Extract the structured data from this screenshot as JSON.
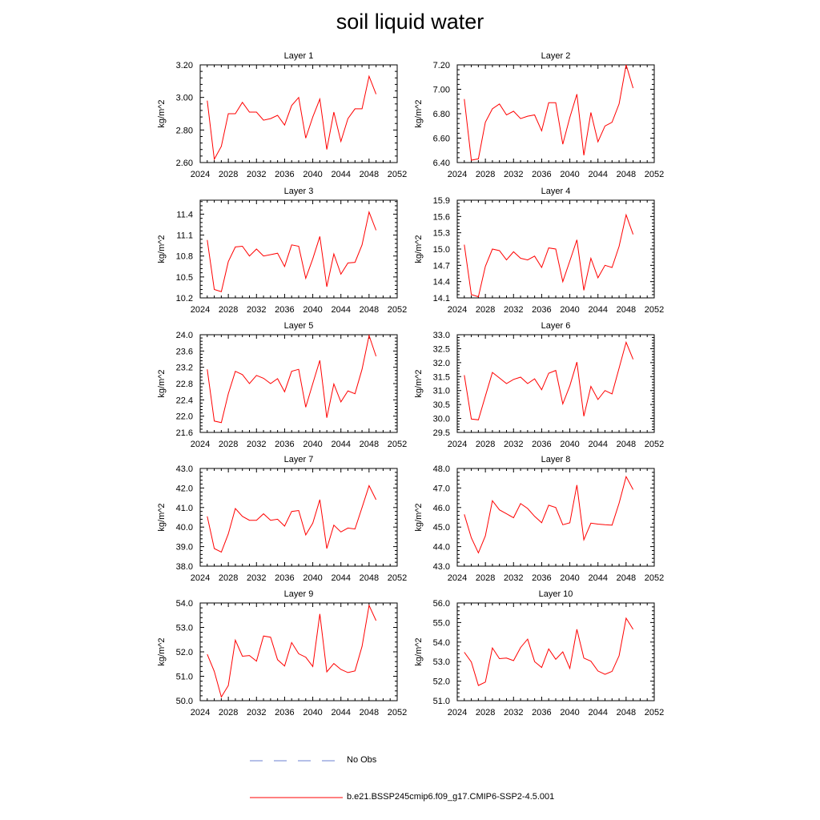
{
  "title": "soil liquid water",
  "legend": {
    "obs_label": "No Obs",
    "obs_color": "#6b7fd0",
    "model_label": "b.e21.BSSP245cmip6.f09_g17.CMIP6-SSP2-4.5.001",
    "model_color": "#ff0000"
  },
  "chart_data": [
    {
      "type": "line",
      "title": "Layer 1",
      "xlabel": "",
      "ylabel": "kg/m^2",
      "xlim": [
        2024,
        2052
      ],
      "ylim": [
        2.6,
        3.2
      ],
      "xticks": [
        "2024",
        "2028",
        "2032",
        "2036",
        "2040",
        "2044",
        "2048",
        "2052"
      ],
      "yticks": [
        "2.60",
        "2.80",
        "3.00",
        "3.20"
      ],
      "series": [
        {
          "x": [
            2025,
            2026,
            2027,
            2028,
            2029,
            2030,
            2031,
            2032,
            2033,
            2034,
            2035,
            2036,
            2037,
            2038,
            2039,
            2040,
            2041,
            2042,
            2043,
            2044,
            2045,
            2046,
            2047,
            2048,
            2049
          ],
          "values": [
            2.98,
            2.62,
            2.7,
            2.9,
            2.9,
            2.97,
            2.91,
            2.91,
            2.86,
            2.87,
            2.89,
            2.83,
            2.95,
            3.0,
            2.75,
            2.88,
            2.99,
            2.68,
            2.91,
            2.73,
            2.87,
            2.93,
            2.93,
            3.13,
            3.02
          ]
        }
      ]
    },
    {
      "type": "line",
      "title": "Layer 2",
      "xlabel": "",
      "ylabel": "kg/m^2",
      "xlim": [
        2024,
        2052
      ],
      "ylim": [
        6.4,
        7.2
      ],
      "xticks": [
        "2024",
        "2028",
        "2032",
        "2036",
        "2040",
        "2044",
        "2048",
        "2052"
      ],
      "yticks": [
        "6.40",
        "6.60",
        "6.80",
        "7.00",
        "7.20"
      ],
      "series": [
        {
          "x": [
            2025,
            2026,
            2027,
            2028,
            2029,
            2030,
            2031,
            2032,
            2033,
            2034,
            2035,
            2036,
            2037,
            2038,
            2039,
            2040,
            2041,
            2042,
            2043,
            2044,
            2045,
            2046,
            2047,
            2048,
            2049
          ],
          "values": [
            6.92,
            6.42,
            6.43,
            6.73,
            6.84,
            6.88,
            6.79,
            6.82,
            6.76,
            6.78,
            6.79,
            6.66,
            6.89,
            6.89,
            6.55,
            6.77,
            6.96,
            6.46,
            6.81,
            6.57,
            6.7,
            6.73,
            6.88,
            7.2,
            7.01
          ]
        }
      ]
    },
    {
      "type": "line",
      "title": "Layer 3",
      "xlabel": "",
      "ylabel": "kg/m^2",
      "xlim": [
        2024,
        2052
      ],
      "ylim": [
        10.2,
        11.6
      ],
      "xticks": [
        "2024",
        "2028",
        "2032",
        "2036",
        "2040",
        "2044",
        "2048",
        "2052"
      ],
      "yticks": [
        "10.2",
        "10.5",
        "10.8",
        "11.1",
        "11.4"
      ],
      "series": [
        {
          "x": [
            2025,
            2026,
            2027,
            2028,
            2029,
            2030,
            2031,
            2032,
            2033,
            2034,
            2035,
            2036,
            2037,
            2038,
            2039,
            2040,
            2041,
            2042,
            2043,
            2044,
            2045,
            2046,
            2047,
            2048,
            2049
          ],
          "values": [
            11.03,
            10.32,
            10.29,
            10.72,
            10.93,
            10.94,
            10.8,
            10.9,
            10.8,
            10.82,
            10.84,
            10.65,
            10.96,
            10.94,
            10.48,
            10.76,
            11.08,
            10.36,
            10.83,
            10.54,
            10.7,
            10.71,
            10.96,
            11.43,
            11.17
          ]
        }
      ]
    },
    {
      "type": "line",
      "title": "Layer 4",
      "xlabel": "",
      "ylabel": "kg/m^2",
      "xlim": [
        2024,
        2052
      ],
      "ylim": [
        14.1,
        15.9
      ],
      "xticks": [
        "2024",
        "2028",
        "2032",
        "2036",
        "2040",
        "2044",
        "2048",
        "2052"
      ],
      "yticks": [
        "14.1",
        "14.4",
        "14.7",
        "15.0",
        "15.3",
        "15.6",
        "15.9"
      ],
      "series": [
        {
          "x": [
            2025,
            2026,
            2027,
            2028,
            2029,
            2030,
            2031,
            2032,
            2033,
            2034,
            2035,
            2036,
            2037,
            2038,
            2039,
            2040,
            2041,
            2042,
            2043,
            2044,
            2045,
            2046,
            2047,
            2048,
            2049
          ],
          "values": [
            15.08,
            14.16,
            14.12,
            14.68,
            15.0,
            14.97,
            14.8,
            14.95,
            14.83,
            14.8,
            14.87,
            14.66,
            15.02,
            15.0,
            14.4,
            14.78,
            15.17,
            14.24,
            14.83,
            14.47,
            14.7,
            14.66,
            15.05,
            15.63,
            15.27
          ]
        }
      ]
    },
    {
      "type": "line",
      "title": "Layer 5",
      "xlabel": "",
      "ylabel": "kg/m^2",
      "xlim": [
        2024,
        2052
      ],
      "ylim": [
        21.6,
        24.0
      ],
      "xticks": [
        "2024",
        "2028",
        "2032",
        "2036",
        "2040",
        "2044",
        "2048",
        "2052"
      ],
      "yticks": [
        "21.6",
        "22.0",
        "22.4",
        "22.8",
        "23.2",
        "23.6",
        "24.0"
      ],
      "series": [
        {
          "x": [
            2025,
            2026,
            2027,
            2028,
            2029,
            2030,
            2031,
            2032,
            2033,
            2034,
            2035,
            2036,
            2037,
            2038,
            2039,
            2040,
            2041,
            2042,
            2043,
            2044,
            2045,
            2046,
            2047,
            2048,
            2049
          ],
          "values": [
            23.15,
            21.88,
            21.84,
            22.55,
            23.1,
            23.02,
            22.8,
            23.0,
            22.93,
            22.8,
            22.92,
            22.6,
            23.1,
            23.15,
            22.22,
            22.8,
            23.37,
            21.96,
            22.79,
            22.35,
            22.62,
            22.55,
            23.15,
            23.98,
            23.47
          ]
        }
      ]
    },
    {
      "type": "line",
      "title": "Layer 6",
      "xlabel": "",
      "ylabel": "kg/m^2",
      "xlim": [
        2024,
        2052
      ],
      "ylim": [
        29.5,
        33.0
      ],
      "xticks": [
        "2024",
        "2028",
        "2032",
        "2036",
        "2040",
        "2044",
        "2048",
        "2052"
      ],
      "yticks": [
        "29.5",
        "30.0",
        "30.5",
        "31.0",
        "31.5",
        "32.0",
        "32.5",
        "33.0"
      ],
      "series": [
        {
          "x": [
            2025,
            2026,
            2027,
            2028,
            2029,
            2030,
            2031,
            2032,
            2033,
            2034,
            2035,
            2036,
            2037,
            2038,
            2039,
            2040,
            2041,
            2042,
            2043,
            2044,
            2045,
            2046,
            2047,
            2048,
            2049
          ],
          "values": [
            31.55,
            29.98,
            29.95,
            30.8,
            31.65,
            31.45,
            31.25,
            31.4,
            31.48,
            31.25,
            31.42,
            31.03,
            31.62,
            31.72,
            30.52,
            31.17,
            32.02,
            30.08,
            31.15,
            30.68,
            31.0,
            30.88,
            31.8,
            32.73,
            32.12
          ]
        }
      ]
    },
    {
      "type": "line",
      "title": "Layer 7",
      "xlabel": "",
      "ylabel": "kg/m^2",
      "xlim": [
        2024,
        2052
      ],
      "ylim": [
        38.0,
        43.0
      ],
      "xticks": [
        "2024",
        "2028",
        "2032",
        "2036",
        "2040",
        "2044",
        "2048",
        "2052"
      ],
      "yticks": [
        "38.0",
        "39.0",
        "40.0",
        "41.0",
        "42.0",
        "43.0"
      ],
      "series": [
        {
          "x": [
            2025,
            2026,
            2027,
            2028,
            2029,
            2030,
            2031,
            2032,
            2033,
            2034,
            2035,
            2036,
            2037,
            2038,
            2039,
            2040,
            2041,
            2042,
            2043,
            2044,
            2045,
            2046,
            2047,
            2048,
            2049
          ],
          "values": [
            40.55,
            38.9,
            38.72,
            39.65,
            40.95,
            40.55,
            40.35,
            40.35,
            40.68,
            40.35,
            40.4,
            40.05,
            40.8,
            40.85,
            39.6,
            40.2,
            41.4,
            38.9,
            40.1,
            39.75,
            39.95,
            39.9,
            41.0,
            42.12,
            41.4
          ]
        }
      ]
    },
    {
      "type": "line",
      "title": "Layer 8",
      "xlabel": "",
      "ylabel": "kg/m^2",
      "xlim": [
        2024,
        2052
      ],
      "ylim": [
        43.0,
        48.0
      ],
      "xticks": [
        "2024",
        "2028",
        "2032",
        "2036",
        "2040",
        "2044",
        "2048",
        "2052"
      ],
      "yticks": [
        "43.0",
        "44.0",
        "45.0",
        "46.0",
        "47.0",
        "48.0"
      ],
      "series": [
        {
          "x": [
            2025,
            2026,
            2027,
            2028,
            2029,
            2030,
            2031,
            2032,
            2033,
            2034,
            2035,
            2036,
            2037,
            2038,
            2039,
            2040,
            2041,
            2042,
            2043,
            2044,
            2045,
            2046,
            2047,
            2048,
            2049
          ],
          "values": [
            45.65,
            44.45,
            43.68,
            44.55,
            46.35,
            45.88,
            45.68,
            45.48,
            46.2,
            45.95,
            45.55,
            45.22,
            46.12,
            46.0,
            45.12,
            45.22,
            47.15,
            44.35,
            45.2,
            45.15,
            45.12,
            45.1,
            46.22,
            47.58,
            46.92
          ]
        }
      ]
    },
    {
      "type": "line",
      "title": "Layer 9",
      "xlabel": "",
      "ylabel": "kg/m^2",
      "xlim": [
        2024,
        2052
      ],
      "ylim": [
        50.0,
        54.0
      ],
      "xticks": [
        "2024",
        "2028",
        "2032",
        "2036",
        "2040",
        "2044",
        "2048",
        "2052"
      ],
      "yticks": [
        "50.0",
        "51.0",
        "52.0",
        "53.0",
        "54.0"
      ],
      "series": [
        {
          "x": [
            2025,
            2026,
            2027,
            2028,
            2029,
            2030,
            2031,
            2032,
            2033,
            2034,
            2035,
            2036,
            2037,
            2038,
            2039,
            2040,
            2041,
            2042,
            2043,
            2044,
            2045,
            2046,
            2047,
            2048,
            2049
          ],
          "values": [
            51.9,
            51.2,
            50.15,
            50.62,
            52.48,
            51.82,
            51.85,
            51.62,
            52.65,
            52.6,
            51.68,
            51.42,
            52.38,
            51.92,
            51.78,
            51.4,
            53.55,
            51.18,
            51.52,
            51.28,
            51.15,
            51.22,
            52.22,
            53.9,
            53.28
          ]
        }
      ]
    },
    {
      "type": "line",
      "title": "Layer 10",
      "xlabel": "",
      "ylabel": "kg/m^2",
      "xlim": [
        2024,
        2052
      ],
      "ylim": [
        51.0,
        56.0
      ],
      "xticks": [
        "2024",
        "2028",
        "2032",
        "2036",
        "2040",
        "2044",
        "2048",
        "2052"
      ],
      "yticks": [
        "51.0",
        "52.0",
        "53.0",
        "54.0",
        "55.0",
        "56.0"
      ],
      "series": [
        {
          "x": [
            2025,
            2026,
            2027,
            2028,
            2029,
            2030,
            2031,
            2032,
            2033,
            2034,
            2035,
            2036,
            2037,
            2038,
            2039,
            2040,
            2041,
            2042,
            2043,
            2044,
            2045,
            2046,
            2047,
            2048,
            2049
          ],
          "values": [
            53.48,
            52.98,
            51.78,
            51.95,
            53.7,
            53.15,
            53.18,
            53.05,
            53.72,
            54.15,
            53.0,
            52.7,
            53.65,
            53.12,
            53.5,
            52.65,
            54.65,
            53.18,
            53.02,
            52.52,
            52.35,
            52.5,
            53.3,
            55.22,
            54.65
          ]
        }
      ]
    }
  ]
}
